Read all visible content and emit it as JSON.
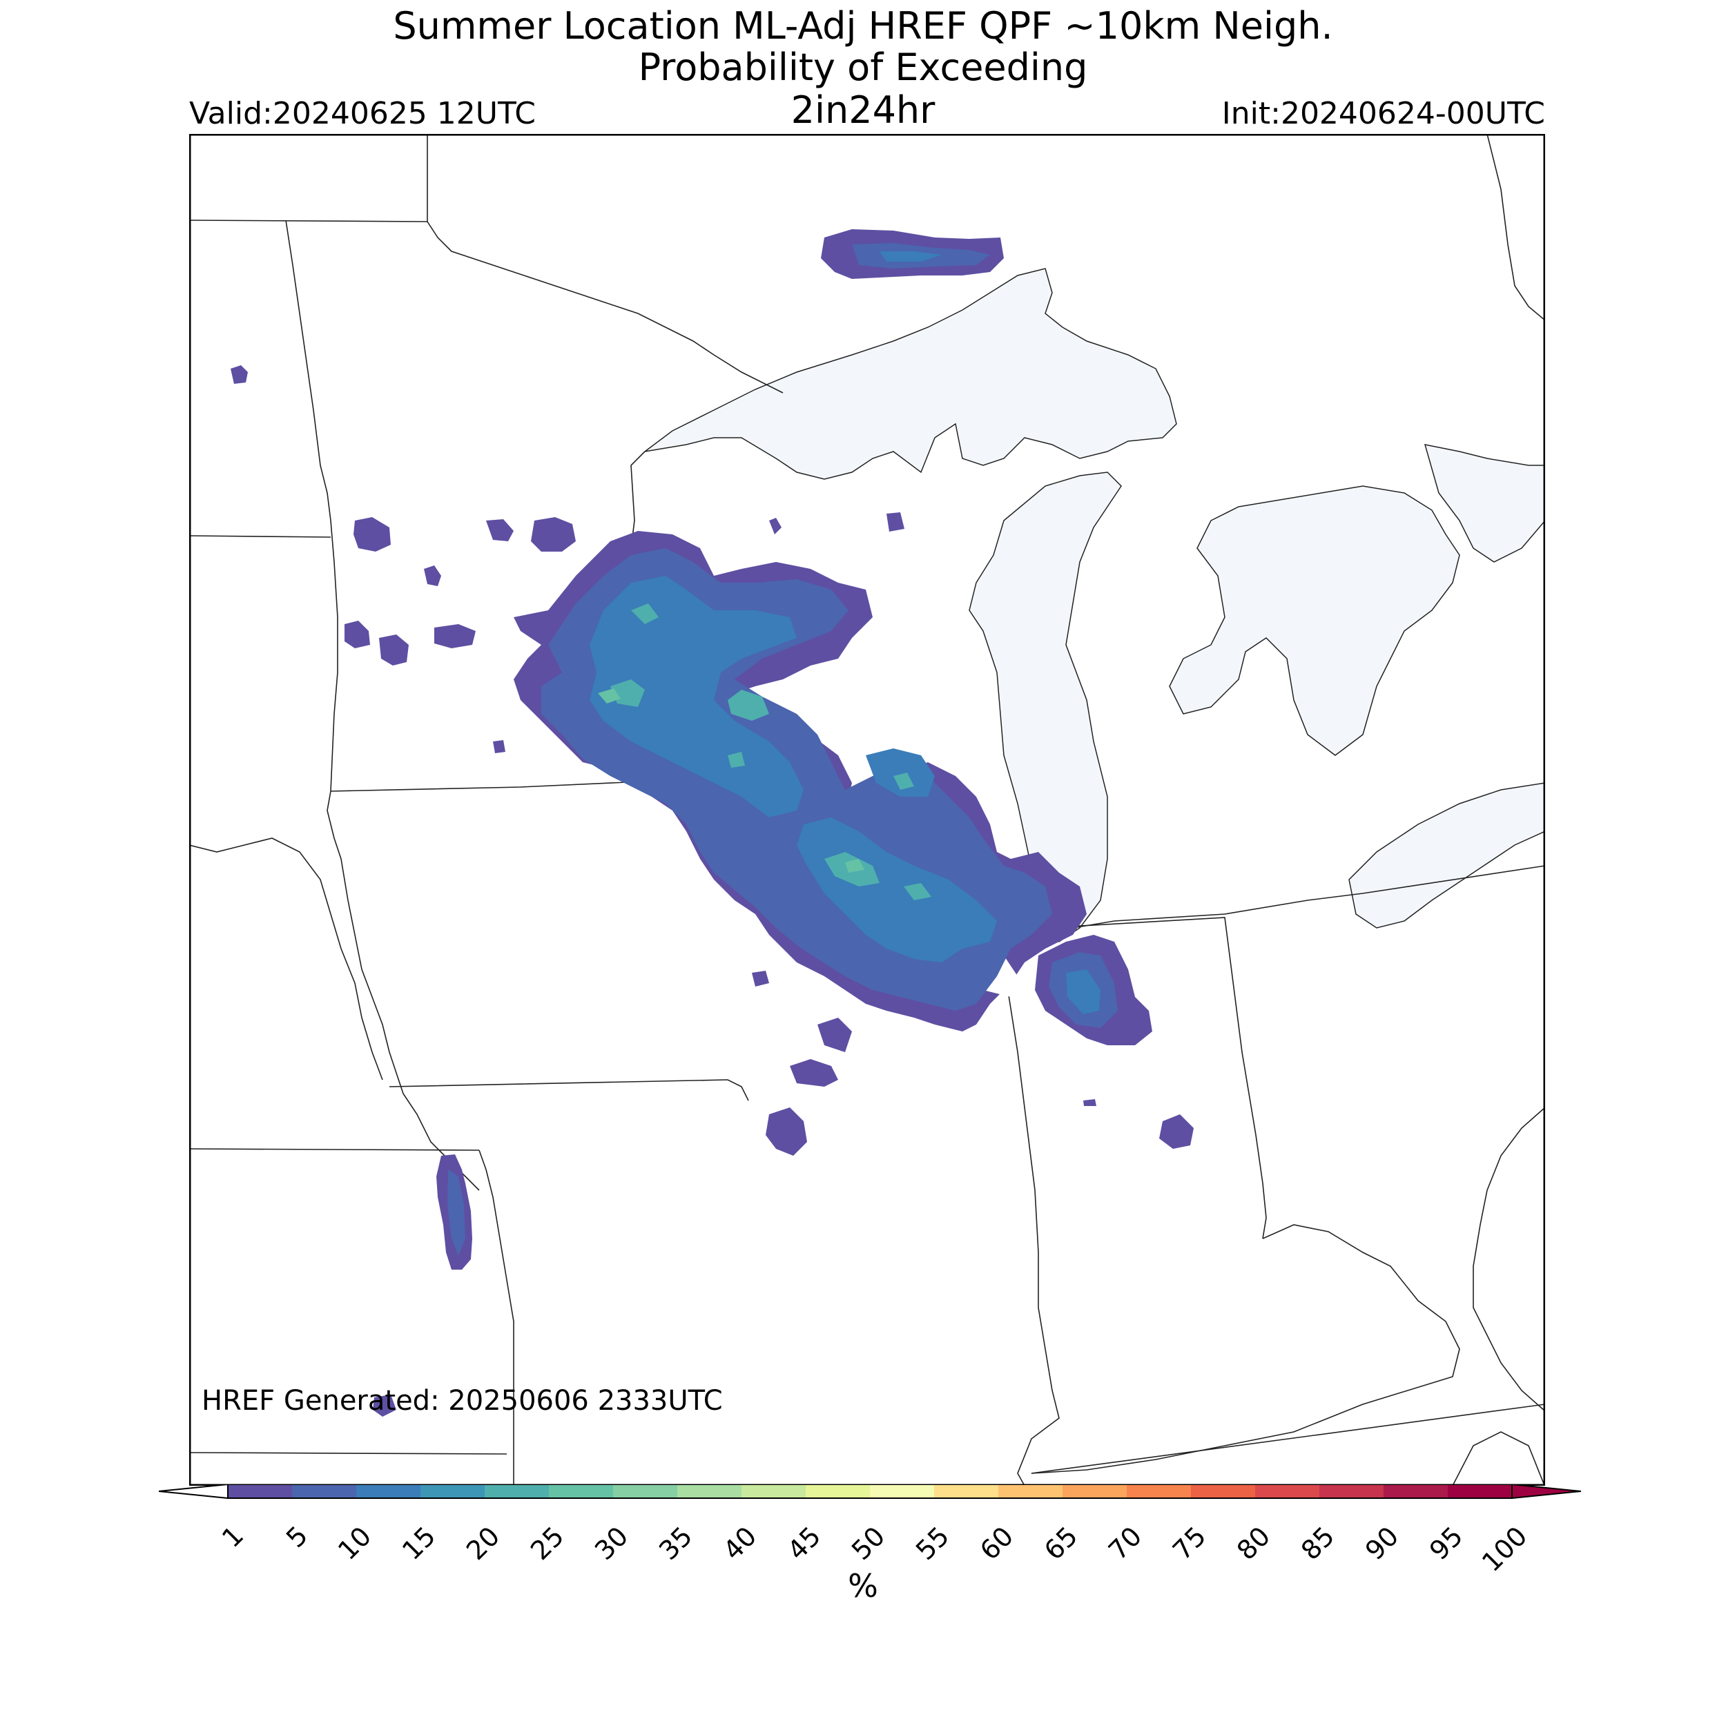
{
  "title": {
    "line1": "Summer Location ML-Adj HREF QPF ~10km Neigh.",
    "line2": "Probability of Exceeding",
    "line3": "2in24hr"
  },
  "valid": "Valid:20240625 12UTC",
  "init": "Init:20240624-00UTC",
  "generated": "HREF Generated: 20250606 2333UTC",
  "colorbar": {
    "unit": "%",
    "ticks": [
      "1",
      "5",
      "10",
      "15",
      "20",
      "25",
      "30",
      "35",
      "40",
      "45",
      "50",
      "55",
      "60",
      "65",
      "70",
      "75",
      "80",
      "85",
      "90",
      "95",
      "100"
    ],
    "colors": [
      "#5e4fa2",
      "#4b65ae",
      "#3a7db8",
      "#3e96b6",
      "#4fafad",
      "#66c2a5",
      "#86cfa5",
      "#a9dda2",
      "#c8e99e",
      "#e6f598",
      "#f6fbb3",
      "#fee08b",
      "#fdc371",
      "#fba55c",
      "#f7844e",
      "#ec6245",
      "#dc494c",
      "#c6344d",
      "#aa1a4a",
      "#9e0142"
    ]
  },
  "map": {
    "lake_color": "#f3f7fc",
    "border_color": "#222222"
  }
}
